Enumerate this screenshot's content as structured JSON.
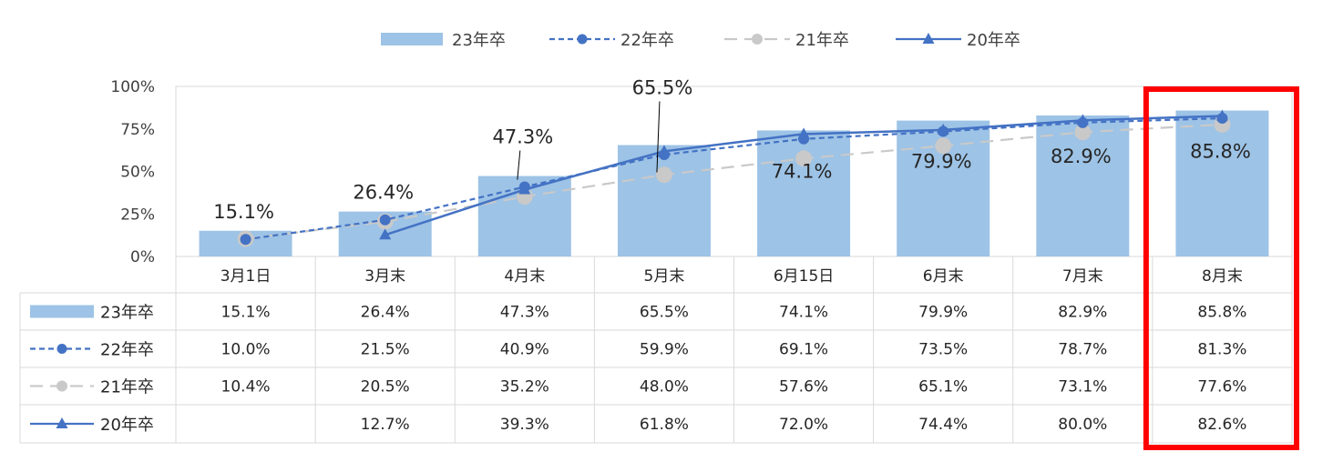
{
  "chart_data": {
    "type": "bar",
    "title": "",
    "xlabel": "",
    "ylabel": "",
    "ylim": [
      0,
      100
    ],
    "y_ticks": [
      "0%",
      "25%",
      "50%",
      "75%",
      "100%"
    ],
    "categories": [
      "3月1日",
      "3月末",
      "4月末",
      "5月末",
      "6月15日",
      "6月末",
      "7月末",
      "8月末"
    ],
    "series": [
      {
        "name": "23年卒",
        "kind": "bar",
        "color": "#9dc3e6",
        "values": [
          15.1,
          26.4,
          47.3,
          65.5,
          74.1,
          79.9,
          82.9,
          85.8
        ],
        "labels": [
          "15.1%",
          "26.4%",
          "47.3%",
          "65.5%",
          "74.1%",
          "79.9%",
          "82.9%",
          "85.8%"
        ]
      },
      {
        "name": "22年卒",
        "kind": "line-dashed-circle",
        "color": "#4472c4",
        "values": [
          10.0,
          21.5,
          40.9,
          59.9,
          69.1,
          73.5,
          78.7,
          81.3
        ],
        "labels": [
          "10.0%",
          "21.5%",
          "40.9%",
          "59.9%",
          "69.1%",
          "73.5%",
          "78.7%",
          "81.3%"
        ]
      },
      {
        "name": "21年卒",
        "kind": "line-dashed-circle",
        "color": "#c9c9c9",
        "values": [
          10.4,
          20.5,
          35.2,
          48.0,
          57.6,
          65.1,
          73.1,
          77.6
        ],
        "labels": [
          "10.4%",
          "20.5%",
          "35.2%",
          "48.0%",
          "57.6%",
          "65.1%",
          "73.1%",
          "77.6%"
        ]
      },
      {
        "name": "20年卒",
        "kind": "line-solid-triangle",
        "color": "#4472c4",
        "values": [
          null,
          12.7,
          39.3,
          61.8,
          72.0,
          74.4,
          80.0,
          82.6
        ],
        "labels": [
          "",
          "12.7%",
          "39.3%",
          "61.8%",
          "72.0%",
          "74.4%",
          "80.0%",
          "82.6%"
        ]
      }
    ],
    "legend": "top",
    "grid": false,
    "data_table": true,
    "highlight": {
      "category": "8月末",
      "color": "#ff0000"
    }
  }
}
